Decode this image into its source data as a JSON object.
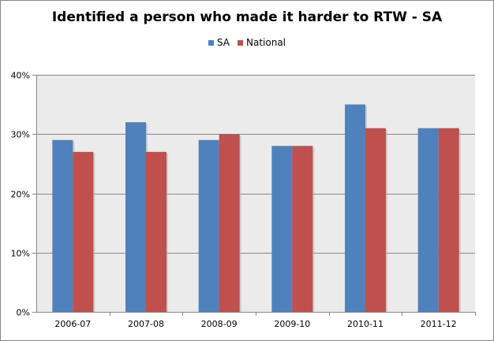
{
  "chart_data": {
    "type": "bar",
    "title": "Identified a person who made it harder to RTW - SA",
    "categories": [
      "2006-07",
      "2007-08",
      "2008-09",
      "2009-10",
      "2010-11",
      "2011-12"
    ],
    "series": [
      {
        "name": "SA",
        "values": [
          29,
          32,
          29,
          28,
          35,
          31
        ],
        "color": "#4F81BD"
      },
      {
        "name": "National",
        "values": [
          27,
          27,
          30,
          28,
          31,
          31
        ],
        "color": "#C0504D"
      }
    ],
    "ylim": [
      0,
      40
    ],
    "yticks": [
      "0%",
      "10%",
      "20%",
      "30%",
      "40%"
    ],
    "grid": true,
    "legend_position": "top",
    "plot_background": "#EBEBEB"
  }
}
